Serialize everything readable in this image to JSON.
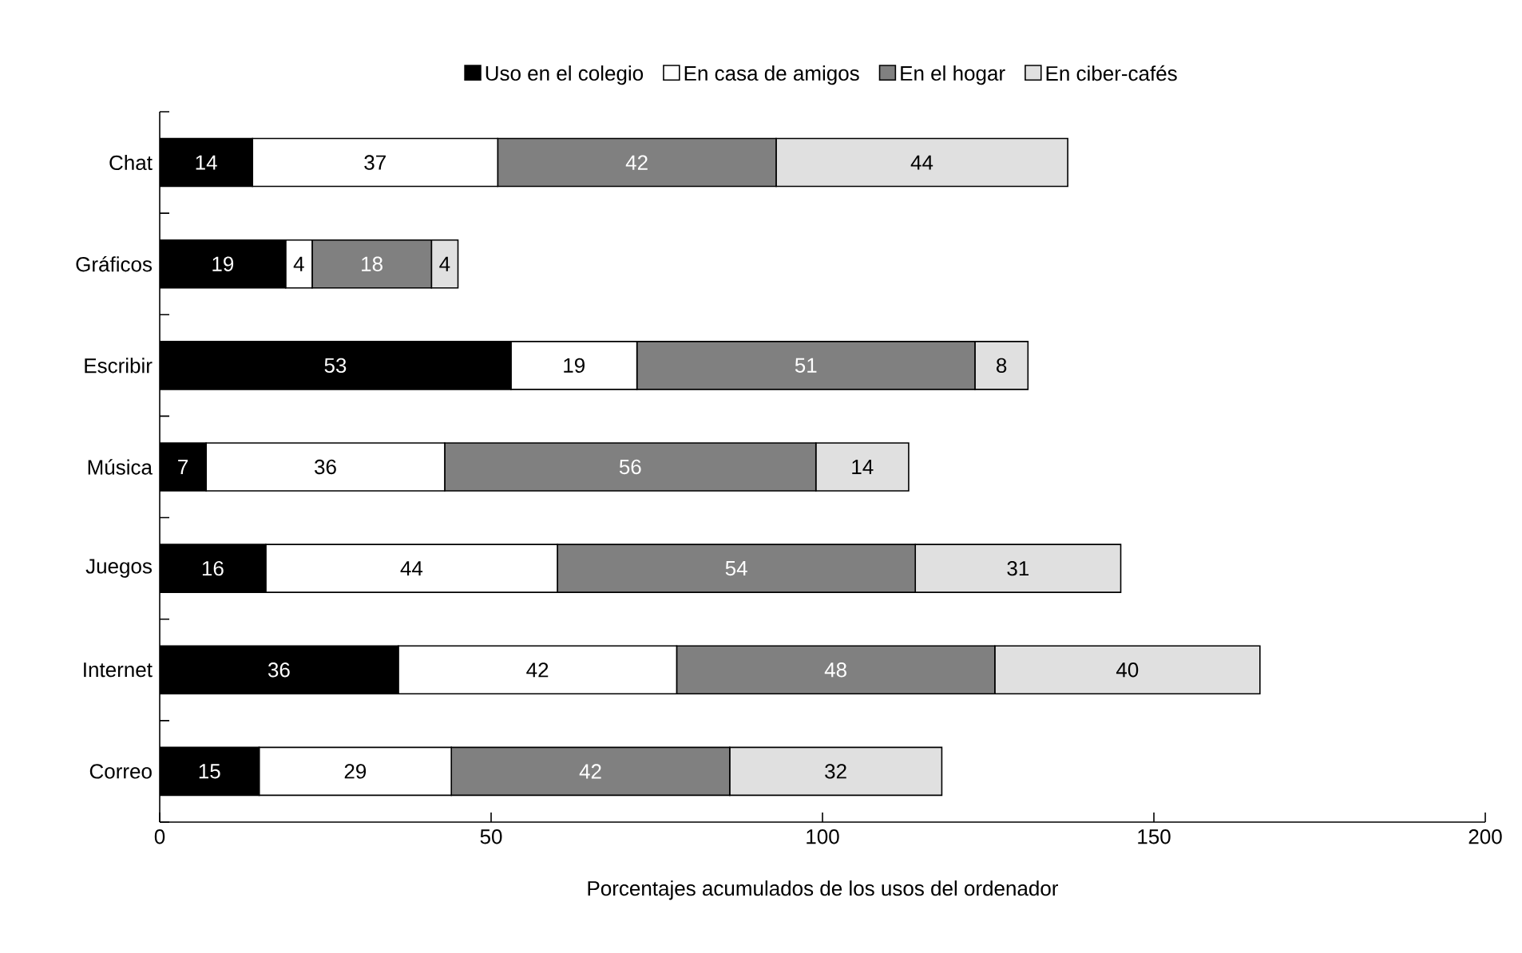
{
  "chart_data": {
    "type": "bar",
    "orientation": "horizontal",
    "stacked": true,
    "data_labels": true,
    "xlabel": "Porcentajes acumulados de los usos del ordenador",
    "categories": [
      "Chat",
      "Gráficos",
      "Escribir",
      "Música",
      "Juegos",
      "Internet",
      "Correo"
    ],
    "series": [
      {
        "name": "Uso en el colegio",
        "color": "#000000",
        "values": [
          14,
          19,
          53,
          7,
          16,
          36,
          15
        ]
      },
      {
        "name": "En casa de amigos",
        "color": "#ffffff",
        "values": [
          37,
          4,
          19,
          36,
          44,
          42,
          29
        ]
      },
      {
        "name": "En el hogar",
        "color": "#808080",
        "values": [
          42,
          18,
          51,
          56,
          54,
          48,
          42
        ]
      },
      {
        "name": "En ciber-cafés",
        "color": "#e0e0e0",
        "values": [
          44,
          4,
          8,
          14,
          31,
          40,
          32
        ]
      }
    ],
    "xlim": [
      0,
      200
    ],
    "xticks": [
      0,
      50,
      100,
      150,
      200
    ],
    "grid": false,
    "legend": "top"
  }
}
